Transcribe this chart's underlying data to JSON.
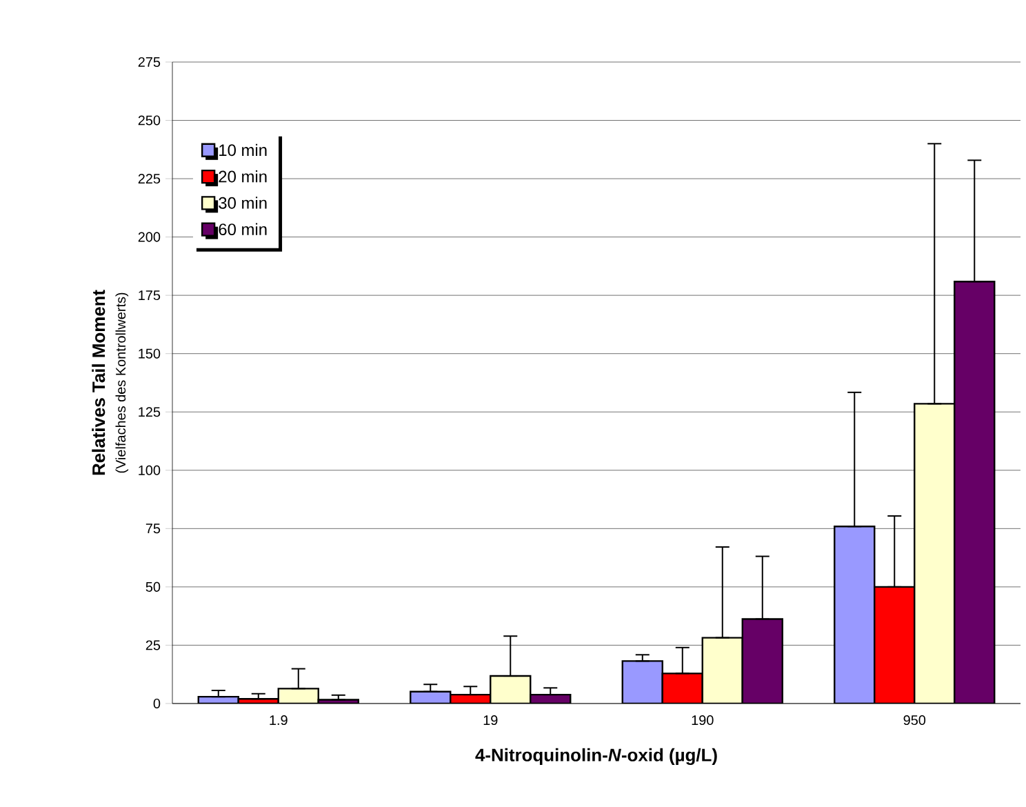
{
  "chart_data": {
    "type": "bar",
    "xlabel": "4-Nitroquinolin-*N*-oxid (µg/L)",
    "ylabel": "Relatives Tail Moment",
    "annotations": [
      "(Vielfaches des Kontrollwerts)"
    ],
    "categories": [
      "1.9",
      "19",
      "190",
      "950"
    ],
    "series": [
      {
        "name": "10 min",
        "color": "#9999ff",
        "values": [
          2.9,
          5.1,
          18.2,
          75.9
        ],
        "errors": [
          [
            2.9,
            5.6
          ],
          [
            5.1,
            8.2
          ],
          [
            18.2,
            20.9
          ],
          [
            75.9,
            133.4
          ]
        ]
      },
      {
        "name": "20 min",
        "color": "#ff0000",
        "values": [
          2.0,
          3.8,
          12.9,
          50.0
        ],
        "errors": [
          [
            2.0,
            4.2
          ],
          [
            3.8,
            7.3
          ],
          [
            12.9,
            24.0
          ],
          [
            50.0,
            80.4
          ]
        ]
      },
      {
        "name": "30 min",
        "color": "#ffffcc",
        "values": [
          6.4,
          11.8,
          28.2,
          128.5
        ],
        "errors": [
          [
            6.4,
            14.9
          ],
          [
            11.8,
            28.9
          ],
          [
            28.2,
            67.1
          ],
          [
            128.5,
            240.0
          ]
        ]
      },
      {
        "name": "60 min",
        "color": "#660066",
        "values": [
          1.6,
          3.8,
          36.2,
          180.9
        ],
        "errors": [
          [
            1.6,
            3.6
          ],
          [
            3.8,
            6.7
          ],
          [
            36.2,
            63.1
          ],
          [
            180.9,
            232.9
          ]
        ]
      }
    ],
    "ylim": [
      0,
      275
    ],
    "yticks": [
      0,
      25,
      50,
      75,
      100,
      125,
      150,
      175,
      200,
      225,
      250,
      275
    ],
    "grid": "y",
    "legend": "top left"
  }
}
